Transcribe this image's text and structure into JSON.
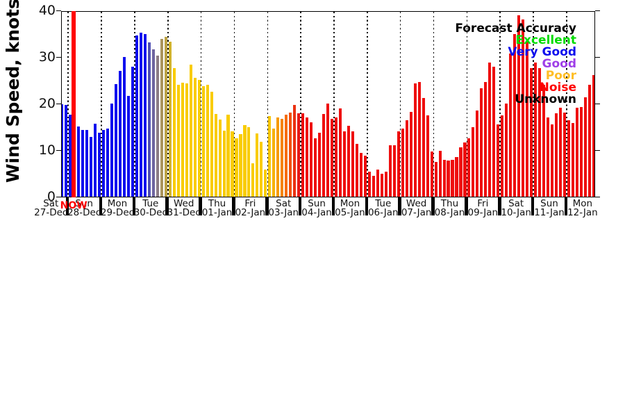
{
  "chart_data": {
    "type": "bar",
    "title": "",
    "ylabel": "Wind Speed, knots",
    "ylim": [
      0,
      40
    ],
    "yticks": [
      0,
      10,
      20,
      30,
      40
    ],
    "grid": "vertical dotted lines at each day boundary",
    "legend_position": "top-right, text only, right-aligned, no frame",
    "now_marker": {
      "label": "NOW",
      "color": "#ff0000",
      "day_index": 1,
      "slot": 1
    },
    "legend": {
      "title": {
        "label": "Forecast Accuracy",
        "color": "#000000"
      },
      "entries": [
        {
          "label": "Excellent",
          "color": "#00dc00"
        },
        {
          "label": "Very Good",
          "color": "#0f0fee"
        },
        {
          "label": "Good",
          "color": "#9f3fe8"
        },
        {
          "label": "Poor",
          "color": "#ffbe26"
        },
        {
          "label": "Noise",
          "color": "#ff0000"
        },
        {
          "label": "Unknown",
          "color": "#000000"
        }
      ]
    },
    "palette": {
      "vg": "#0f0fee",
      "t1": "#5050b4",
      "t2": "#6e64a0",
      "t3": "#8c7c88",
      "t4": "#aa945c",
      "t5": "#bca244",
      "g1": "#d2b42c",
      "po": "#f9cc02",
      "o1": "#f6c606",
      "o2": "#f6b106",
      "o3": "#f69b06",
      "o4": "#f68406",
      "o5": "#f66d08",
      "o6": "#f2500c",
      "o7": "#ea3212",
      "o8": "#e61a16",
      "no": "#ee0d0d"
    },
    "days": [
      {
        "wd": "Sat",
        "dt": "27-Dec",
        "c": "vg",
        "bars": [
          {
            "s": 6,
            "v": 19.8
          },
          {
            "s": 7,
            "v": 19.6
          }
        ]
      },
      {
        "wd": "Sun",
        "dt": "28-Dec",
        "c": "vg",
        "now_slot": 1,
        "bars": [
          {
            "s": 0,
            "v": 17.6
          },
          {
            "s": 2,
            "v": 15.0
          },
          {
            "s": 3,
            "v": 14.2
          },
          {
            "s": 4,
            "v": 14.2
          },
          {
            "s": 5,
            "v": 12.7
          },
          {
            "s": 6,
            "v": 15.6
          },
          {
            "s": 7,
            "v": 13.6
          }
        ]
      },
      {
        "wd": "Mon",
        "dt": "29-Dec",
        "c": "vg",
        "bars": [
          {
            "s": 0,
            "v": 14.2
          },
          {
            "s": 1,
            "v": 14.6
          },
          {
            "s": 2,
            "v": 20.0
          },
          {
            "s": 3,
            "v": 24.1
          },
          {
            "s": 4,
            "v": 26.9
          },
          {
            "s": 5,
            "v": 29.9
          },
          {
            "s": 6,
            "v": 21.6
          },
          {
            "s": 7,
            "v": 27.9
          }
        ]
      },
      {
        "wd": "Tue",
        "dt": "30-Dec",
        "c": "vg",
        "bars": [
          {
            "s": 0,
            "v": 34.5
          },
          {
            "s": 1,
            "v": 35.2
          },
          {
            "s": 2,
            "v": 34.9
          },
          {
            "s": 3,
            "v": 33.0,
            "c": "t1"
          },
          {
            "s": 4,
            "v": 31.6,
            "c": "t2"
          },
          {
            "s": 5,
            "v": 30.3,
            "c": "t3"
          },
          {
            "s": 6,
            "v": 33.8,
            "c": "t4"
          },
          {
            "s": 7,
            "v": 34.2,
            "c": "t5"
          }
        ]
      },
      {
        "wd": "Wed",
        "dt": "31-Dec",
        "c": "po",
        "bars": [
          {
            "s": 0,
            "v": 33.2,
            "c": "g1"
          },
          {
            "s": 1,
            "v": 27.5
          },
          {
            "s": 2,
            "v": 23.9
          },
          {
            "s": 3,
            "v": 24.4
          },
          {
            "s": 4,
            "v": 24.2
          },
          {
            "s": 5,
            "v": 28.3
          },
          {
            "s": 6,
            "v": 25.4
          },
          {
            "s": 7,
            "v": 25.0
          }
        ]
      },
      {
        "wd": "Thu",
        "dt": "01-Jan",
        "c": "po",
        "bars": [
          {
            "s": 0,
            "v": 23.6
          },
          {
            "s": 1,
            "v": 23.9
          },
          {
            "s": 2,
            "v": 22.4
          },
          {
            "s": 3,
            "v": 17.7
          },
          {
            "s": 4,
            "v": 16.5
          },
          {
            "s": 5,
            "v": 14.1
          },
          {
            "s": 6,
            "v": 17.5
          },
          {
            "s": 7,
            "v": 14.0
          }
        ]
      },
      {
        "wd": "Fri",
        "dt": "02-Jan",
        "c": "po",
        "bars": [
          {
            "s": 0,
            "v": 12.4
          },
          {
            "s": 1,
            "v": 13.3
          },
          {
            "s": 2,
            "v": 15.3
          },
          {
            "s": 3,
            "v": 14.9
          },
          {
            "s": 4,
            "v": 7.1
          },
          {
            "s": 5,
            "v": 13.5
          },
          {
            "s": 6,
            "v": 11.7
          },
          {
            "s": 7,
            "v": 5.8
          }
        ]
      },
      {
        "wd": "Sat",
        "dt": "03-Jan",
        "c": "o1",
        "bars": [
          {
            "s": 0,
            "v": 17.2,
            "c": "o1"
          },
          {
            "s": 1,
            "v": 14.6,
            "c": "o2"
          },
          {
            "s": 2,
            "v": 16.9,
            "c": "o3"
          },
          {
            "s": 3,
            "v": 16.6,
            "c": "o4"
          },
          {
            "s": 4,
            "v": 17.6,
            "c": "o5"
          },
          {
            "s": 5,
            "v": 18.0,
            "c": "o6"
          },
          {
            "s": 6,
            "v": 19.6,
            "c": "o7"
          },
          {
            "s": 7,
            "v": 17.8,
            "c": "o8"
          }
        ]
      },
      {
        "wd": "Sun",
        "dt": "04-Jan",
        "c": "no",
        "bars": [
          {
            "s": 0,
            "v": 17.9
          },
          {
            "s": 1,
            "v": 17.0
          },
          {
            "s": 2,
            "v": 15.9
          },
          {
            "s": 3,
            "v": 12.4
          },
          {
            "s": 4,
            "v": 13.6
          },
          {
            "s": 5,
            "v": 17.7
          },
          {
            "s": 6,
            "v": 20.0
          },
          {
            "s": 7,
            "v": 16.6
          }
        ]
      },
      {
        "wd": "Mon",
        "dt": "05-Jan",
        "c": "no",
        "bars": [
          {
            "s": 0,
            "v": 17.0
          },
          {
            "s": 1,
            "v": 18.9
          },
          {
            "s": 2,
            "v": 13.9
          },
          {
            "s": 3,
            "v": 15.2
          },
          {
            "s": 4,
            "v": 14.0
          },
          {
            "s": 5,
            "v": 11.2
          },
          {
            "s": 6,
            "v": 9.4
          },
          {
            "s": 7,
            "v": 8.7
          }
        ]
      },
      {
        "wd": "Tue",
        "dt": "06-Jan",
        "c": "no",
        "bars": [
          {
            "s": 0,
            "v": 5.3
          },
          {
            "s": 1,
            "v": 4.4
          },
          {
            "s": 2,
            "v": 5.7
          },
          {
            "s": 3,
            "v": 4.9
          },
          {
            "s": 4,
            "v": 5.3
          },
          {
            "s": 5,
            "v": 11.0
          },
          {
            "s": 6,
            "v": 11.0
          },
          {
            "s": 7,
            "v": 13.9
          }
        ]
      },
      {
        "wd": "Wed",
        "dt": "07-Jan",
        "c": "no",
        "bars": [
          {
            "s": 0,
            "v": 14.5
          },
          {
            "s": 1,
            "v": 16.4
          },
          {
            "s": 2,
            "v": 18.1
          },
          {
            "s": 3,
            "v": 24.3
          },
          {
            "s": 4,
            "v": 24.5
          },
          {
            "s": 5,
            "v": 21.1
          },
          {
            "s": 6,
            "v": 17.4
          },
          {
            "s": 7,
            "v": 9.7
          }
        ]
      },
      {
        "wd": "Thu",
        "dt": "08-Jan",
        "c": "no",
        "bars": [
          {
            "s": 0,
            "v": 7.4
          },
          {
            "s": 1,
            "v": 9.8
          },
          {
            "s": 2,
            "v": 7.9
          },
          {
            "s": 3,
            "v": 7.7
          },
          {
            "s": 4,
            "v": 7.9
          },
          {
            "s": 5,
            "v": 8.5
          },
          {
            "s": 6,
            "v": 10.5
          },
          {
            "s": 7,
            "v": 11.5
          }
        ]
      },
      {
        "wd": "Fri",
        "dt": "09-Jan",
        "c": "no",
        "bars": [
          {
            "s": 0,
            "v": 12.4
          },
          {
            "s": 1,
            "v": 14.9
          },
          {
            "s": 2,
            "v": 18.5
          },
          {
            "s": 3,
            "v": 23.2
          },
          {
            "s": 4,
            "v": 24.6
          },
          {
            "s": 5,
            "v": 28.7
          },
          {
            "s": 6,
            "v": 27.8
          },
          {
            "s": 7,
            "v": 15.5
          }
        ]
      },
      {
        "wd": "Sat",
        "dt": "10-Jan",
        "c": "no",
        "bars": [
          {
            "s": 0,
            "v": 17.4
          },
          {
            "s": 1,
            "v": 20.0
          },
          {
            "s": 2,
            "v": 30.6
          },
          {
            "s": 3,
            "v": 34.9
          },
          {
            "s": 4,
            "v": 38.9
          },
          {
            "s": 5,
            "v": 38.0
          },
          {
            "s": 6,
            "v": 33.3
          },
          {
            "s": 7,
            "v": 27.5
          }
        ]
      },
      {
        "wd": "Sun",
        "dt": "11-Jan",
        "c": "no",
        "bars": [
          {
            "s": 0,
            "v": 28.8
          },
          {
            "s": 1,
            "v": 27.5
          },
          {
            "s": 2,
            "v": 24.0
          },
          {
            "s": 3,
            "v": 16.9
          },
          {
            "s": 4,
            "v": 15.5
          },
          {
            "s": 5,
            "v": 17.8
          },
          {
            "s": 6,
            "v": 19.0
          },
          {
            "s": 7,
            "v": 18.0
          }
        ]
      },
      {
        "wd": "Mon",
        "dt": "12-Jan",
        "c": "no",
        "bars": [
          {
            "s": 0,
            "v": 16.4
          },
          {
            "s": 1,
            "v": 15.8
          },
          {
            "s": 2,
            "v": 19.0
          },
          {
            "s": 3,
            "v": 19.2
          },
          {
            "s": 4,
            "v": 21.2
          },
          {
            "s": 5,
            "v": 24.0
          },
          {
            "s": 6,
            "v": 26.0
          }
        ]
      }
    ]
  }
}
